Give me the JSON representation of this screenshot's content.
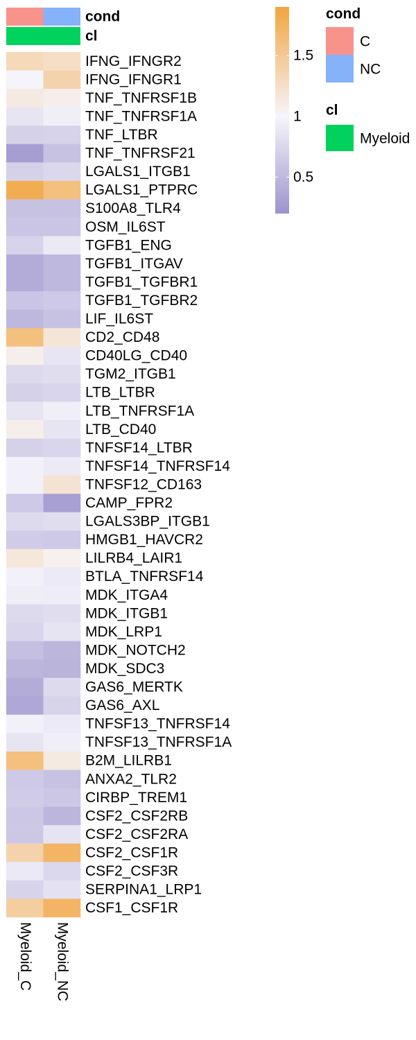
{
  "chart_data": {
    "type": "heatmap",
    "columns": [
      "Myeloid_C",
      "Myeloid_NC"
    ],
    "column_annotations": [
      {
        "name": "cond",
        "values": [
          "C",
          "NC"
        ],
        "colors": {
          "C": "#f8938c",
          "NC": "#85b2f8"
        }
      },
      {
        "name": "cl",
        "values": [
          "Myeloid",
          "Myeloid"
        ],
        "colors": {
          "Myeloid": "#00d25e"
        }
      }
    ],
    "rows": [
      {
        "label": "IFNG_IFNGR2",
        "values": [
          1.32,
          1.26
        ]
      },
      {
        "label": "IFNG_IFNGR1",
        "values": [
          0.99,
          1.38
        ]
      },
      {
        "label": "TNF_TNFRSF1B",
        "values": [
          1.12,
          1.08
        ]
      },
      {
        "label": "TNF_TNFRSF1A",
        "values": [
          0.87,
          0.95
        ]
      },
      {
        "label": "TNF_LTBR",
        "values": [
          0.7,
          0.72
        ]
      },
      {
        "label": "TNF_TNFRSF21",
        "values": [
          0.28,
          0.58
        ]
      },
      {
        "label": "LGALS1_ITGB1",
        "values": [
          0.7,
          0.76
        ]
      },
      {
        "label": "LGALS1_PTPRC",
        "values": [
          1.82,
          1.6
        ]
      },
      {
        "label": "S100A8_TLR4",
        "values": [
          0.58,
          0.58
        ]
      },
      {
        "label": "OSM_IL6ST",
        "values": [
          0.6,
          0.6
        ]
      },
      {
        "label": "TGFB1_ENG",
        "values": [
          0.72,
          0.9
        ]
      },
      {
        "label": "TGFB1_ITGAV",
        "values": [
          0.4,
          0.5
        ]
      },
      {
        "label": "TGFB1_TGFBR1",
        "values": [
          0.4,
          0.5
        ]
      },
      {
        "label": "TGFB1_TGFBR2",
        "values": [
          0.6,
          0.64
        ]
      },
      {
        "label": "LIF_IL6ST",
        "values": [
          0.5,
          0.58
        ]
      },
      {
        "label": "CD2_CD48",
        "values": [
          1.6,
          1.18
        ]
      },
      {
        "label": "CD40LG_CD40",
        "values": [
          1.08,
          0.87
        ]
      },
      {
        "label": "TGM2_ITGB1",
        "values": [
          0.78,
          0.8
        ]
      },
      {
        "label": "LTB_LTBR",
        "values": [
          0.7,
          0.74
        ]
      },
      {
        "label": "LTB_TNFRSF1A",
        "values": [
          0.87,
          0.95
        ]
      },
      {
        "label": "LTB_CD40",
        "values": [
          1.08,
          0.87
        ]
      },
      {
        "label": "TNFSF14_LTBR",
        "values": [
          0.7,
          0.74
        ]
      },
      {
        "label": "TNFSF14_TNFRSF14",
        "values": [
          0.96,
          0.91
        ]
      },
      {
        "label": "TNFSF12_CD163",
        "values": [
          0.96,
          1.2
        ]
      },
      {
        "label": "CAMP_FPR2",
        "values": [
          0.64,
          0.3
        ]
      },
      {
        "label": "LGALS3BP_ITGB1",
        "values": [
          0.78,
          0.8
        ]
      },
      {
        "label": "HMGB1_HAVCR2",
        "values": [
          0.66,
          0.64
        ]
      },
      {
        "label": "LILRB4_LAIR1",
        "values": [
          1.16,
          1.06
        ]
      },
      {
        "label": "BTLA_TNFRSF14",
        "values": [
          0.96,
          0.91
        ]
      },
      {
        "label": "MDK_ITGA4",
        "values": [
          0.94,
          0.93
        ]
      },
      {
        "label": "MDK_ITGB1",
        "values": [
          0.78,
          0.8
        ]
      },
      {
        "label": "MDK_LRP1",
        "values": [
          0.74,
          0.86
        ]
      },
      {
        "label": "MDK_NOTCH2",
        "values": [
          0.56,
          0.48
        ]
      },
      {
        "label": "MDK_SDC3",
        "values": [
          0.48,
          0.46
        ]
      },
      {
        "label": "GAS6_MERTK",
        "values": [
          0.4,
          0.78
        ]
      },
      {
        "label": "GAS6_AXL",
        "values": [
          0.36,
          0.72
        ]
      },
      {
        "label": "TNFSF13_TNFRSF14",
        "values": [
          0.96,
          0.91
        ]
      },
      {
        "label": "TNFSF13_TNFRSF1A",
        "values": [
          0.87,
          0.95
        ]
      },
      {
        "label": "B2M_LILRB1",
        "values": [
          1.6,
          1.12
        ]
      },
      {
        "label": "ANXA2_TLR2",
        "values": [
          0.64,
          0.58
        ]
      },
      {
        "label": "CIRBP_TREM1",
        "values": [
          0.66,
          0.62
        ]
      },
      {
        "label": "CSF2_CSF2RB",
        "values": [
          0.62,
          0.48
        ]
      },
      {
        "label": "CSF2_CSF2RA",
        "values": [
          0.62,
          0.86
        ]
      },
      {
        "label": "CSF2_CSF1R",
        "values": [
          1.38,
          1.72
        ]
      },
      {
        "label": "CSF2_CSF3R",
        "values": [
          0.9,
          0.76
        ]
      },
      {
        "label": "SERPINA1_LRP1",
        "values": [
          0.72,
          0.84
        ]
      },
      {
        "label": "CSF1_CSF1R",
        "values": [
          1.44,
          1.72
        ]
      }
    ],
    "color_scale": {
      "min": 0.2,
      "mid": 1,
      "max": 1.9,
      "colors": {
        "low": "#9d94cc",
        "mid": "#f6f5fb",
        "high": "#f2a540"
      },
      "ticks": [
        0.5,
        1,
        1.5
      ],
      "tick_labels": [
        "0.5",
        "1",
        "1.5"
      ]
    },
    "legends": {
      "cond": {
        "title": "cond",
        "entries": [
          {
            "label": "C",
            "color": "#f8938c"
          },
          {
            "label": "NC",
            "color": "#85b2f8"
          }
        ]
      },
      "cl": {
        "title": "cl",
        "entries": [
          {
            "label": "Myeloid",
            "color": "#00d25e"
          }
        ]
      }
    },
    "legend_placement": "top-right"
  }
}
